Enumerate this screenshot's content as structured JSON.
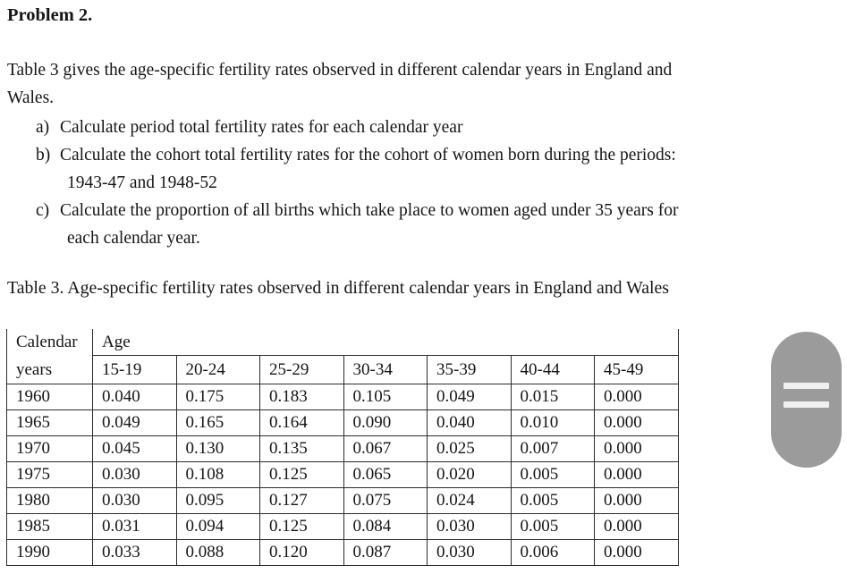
{
  "document": {
    "title": "Problem 2.",
    "intro": {
      "line1": "Table 3 gives the age-specific fertility rates observed in different calendar years in England and",
      "line2": "Wales."
    },
    "questions": [
      {
        "label": "a)",
        "text": "Calculate period total fertility rates for each calendar year"
      },
      {
        "label": "b)",
        "text": "Calculate the cohort total fertility rates for the cohort of women born during the periods:",
        "continuation": "1943-47 and 1948-52"
      },
      {
        "label": "c)",
        "text": "Calculate the proportion of all births which take place to women aged under 35 years for",
        "continuation": "each calendar year."
      }
    ],
    "table_caption": "Table 3. Age-specific fertility rates observed in different calendar years in England and Wales"
  },
  "fertility_table": {
    "row_header_line1": "Calendar",
    "row_header_line2": "years",
    "col_group_header": "Age",
    "age_groups": [
      "15-19",
      "20-24",
      "25-29",
      "30-34",
      "35-39",
      "40-44",
      "45-49"
    ],
    "rows": [
      {
        "year": "1960",
        "values": [
          "0.040",
          "0.175",
          "0.183",
          "0.105",
          "0.049",
          "0.015",
          "0.000"
        ]
      },
      {
        "year": "1965",
        "values": [
          "0.049",
          "0.165",
          "0.164",
          "0.090",
          "0.040",
          "0.010",
          "0.000"
        ]
      },
      {
        "year": "1970",
        "values": [
          "0.045",
          "0.130",
          "0.135",
          "0.067",
          "0.025",
          "0.007",
          "0.000"
        ]
      },
      {
        "year": "1975",
        "values": [
          "0.030",
          "0.108",
          "0.125",
          "0.065",
          "0.020",
          "0.005",
          "0.000"
        ]
      },
      {
        "year": "1980",
        "values": [
          "0.030",
          "0.095",
          "0.127",
          "0.075",
          "0.024",
          "0.005",
          "0.000"
        ]
      },
      {
        "year": "1985",
        "values": [
          "0.031",
          "0.094",
          "0.125",
          "0.084",
          "0.030",
          "0.005",
          "0.000"
        ]
      },
      {
        "year": "1990",
        "values": [
          "0.033",
          "0.088",
          "0.120",
          "0.087",
          "0.030",
          "0.006",
          "0.000"
        ]
      }
    ]
  },
  "side_widget": {
    "background_color": "#9b9b9b",
    "bar_color": "#f0f0f0"
  }
}
